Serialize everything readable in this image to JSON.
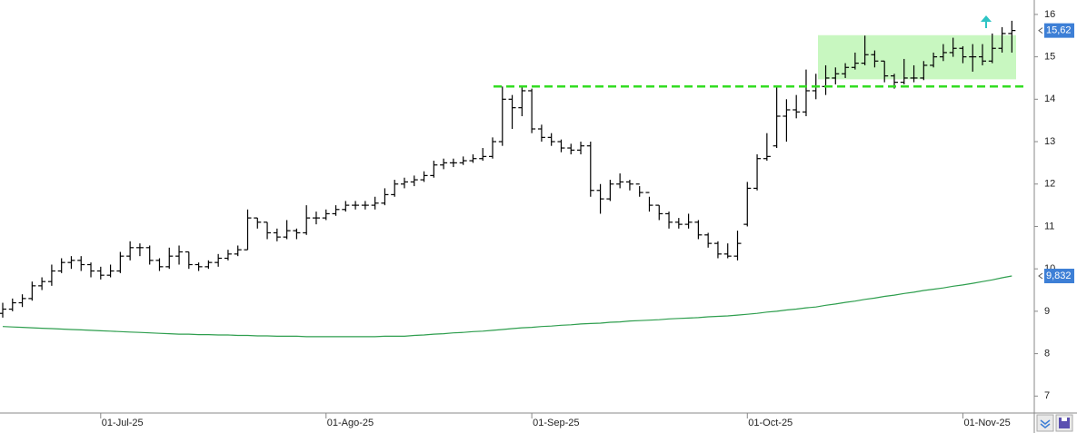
{
  "chart_data": {
    "type": "ohlc",
    "categories": [
      null,
      null,
      null,
      null,
      null,
      null,
      null,
      null,
      null,
      null,
      "01-Jul-25",
      null,
      null,
      null,
      null,
      null,
      null,
      null,
      null,
      null,
      null,
      null,
      null,
      null,
      null,
      null,
      null,
      null,
      null,
      null,
      null,
      null,
      null,
      "01-Ago-25",
      null,
      null,
      null,
      null,
      null,
      null,
      null,
      null,
      null,
      null,
      null,
      null,
      null,
      null,
      null,
      null,
      null,
      null,
      null,
      null,
      "01-Sep-25",
      null,
      null,
      null,
      null,
      null,
      null,
      null,
      null,
      null,
      null,
      null,
      null,
      null,
      null,
      null,
      null,
      null,
      null,
      null,
      null,
      null,
      "01-Oct-25",
      null,
      null,
      null,
      null,
      null,
      null,
      null,
      null,
      null,
      null,
      null,
      null,
      null,
      null,
      null,
      null,
      null,
      null,
      null,
      null,
      null,
      "01-Nov-25",
      null,
      null,
      null,
      null,
      null
    ],
    "ohlc": {
      "color": "#000000",
      "open": [
        8.95,
        9.05,
        9.2,
        9.3,
        9.6,
        9.7,
        9.95,
        10.15,
        10.2,
        10.1,
        9.95,
        9.85,
        9.95,
        10.3,
        10.5,
        10.5,
        10.2,
        10.05,
        10.3,
        10.4,
        10.1,
        10.05,
        10.15,
        10.25,
        10.35,
        10.45,
        11.2,
        11.1,
        10.85,
        10.75,
        10.9,
        10.85,
        11.2,
        11.2,
        11.3,
        11.4,
        11.5,
        11.5,
        11.5,
        11.55,
        11.75,
        12.0,
        12.05,
        12.1,
        12.2,
        12.45,
        12.5,
        12.5,
        12.55,
        12.6,
        12.65,
        13.0,
        14.0,
        13.8,
        14.2,
        13.3,
        13.1,
        13.0,
        12.85,
        12.8,
        12.9,
        11.85,
        11.65,
        12.0,
        12.05,
        12.0,
        11.8,
        11.5,
        11.3,
        11.1,
        11.05,
        11.1,
        10.8,
        10.6,
        10.35,
        10.3,
        11.05,
        11.9,
        12.6,
        12.9,
        13.6,
        13.75,
        13.7,
        14.2,
        14.3,
        14.5,
        14.6,
        14.75,
        14.85,
        15.05,
        14.9,
        14.55,
        14.4,
        14.5,
        14.5,
        14.8,
        15.0,
        15.1,
        15.2,
        15.0,
        15.0,
        14.9,
        15.2,
        15.55
      ],
      "high": [
        9.2,
        9.3,
        9.4,
        9.7,
        9.8,
        10.1,
        10.25,
        10.3,
        10.3,
        10.15,
        10.05,
        10.1,
        10.4,
        10.65,
        10.6,
        10.55,
        10.25,
        10.5,
        10.55,
        10.4,
        10.15,
        10.2,
        10.35,
        10.45,
        10.55,
        11.4,
        11.2,
        11.1,
        10.95,
        11.15,
        10.95,
        11.5,
        11.35,
        11.4,
        11.5,
        11.6,
        11.6,
        11.6,
        11.7,
        11.9,
        12.1,
        12.15,
        12.2,
        12.3,
        12.55,
        12.6,
        12.6,
        12.65,
        12.7,
        12.85,
        13.1,
        14.3,
        14.1,
        14.3,
        14.25,
        13.4,
        13.2,
        13.05,
        12.95,
        13.0,
        13.0,
        12.0,
        12.1,
        12.25,
        12.1,
        11.95,
        11.7,
        11.5,
        11.35,
        11.2,
        11.3,
        11.15,
        10.85,
        10.65,
        10.6,
        10.9,
        12.05,
        12.7,
        13.2,
        14.3,
        14.0,
        14.1,
        14.7,
        14.6,
        14.8,
        14.75,
        14.85,
        15.1,
        15.5,
        15.15,
        14.9,
        14.6,
        14.95,
        14.8,
        14.9,
        15.1,
        15.3,
        15.45,
        15.25,
        15.3,
        15.3,
        15.55,
        15.7,
        15.85
      ],
      "low": [
        8.85,
        9.0,
        9.1,
        9.25,
        9.5,
        9.6,
        9.9,
        10.0,
        9.95,
        9.8,
        9.75,
        9.8,
        9.9,
        10.2,
        10.3,
        10.1,
        9.95,
        10.0,
        10.1,
        10.0,
        9.95,
        10.0,
        10.05,
        10.2,
        10.3,
        10.45,
        10.95,
        10.7,
        10.65,
        10.7,
        10.7,
        10.8,
        11.05,
        11.15,
        11.25,
        11.35,
        11.4,
        11.4,
        11.4,
        11.5,
        11.7,
        11.9,
        11.95,
        12.05,
        12.15,
        12.35,
        12.4,
        12.45,
        12.5,
        12.55,
        12.6,
        12.9,
        13.3,
        13.6,
        13.2,
        13.0,
        12.9,
        12.75,
        12.7,
        12.7,
        11.7,
        11.3,
        11.6,
        11.9,
        11.85,
        11.7,
        11.35,
        11.15,
        10.95,
        10.95,
        10.95,
        10.7,
        10.5,
        10.25,
        10.25,
        10.2,
        11.0,
        11.85,
        12.55,
        12.85,
        13.0,
        13.55,
        13.6,
        14.0,
        14.1,
        14.35,
        14.5,
        14.7,
        14.8,
        14.75,
        14.4,
        14.25,
        14.35,
        14.4,
        14.45,
        14.75,
        14.9,
        15.0,
        14.85,
        14.65,
        14.8,
        14.85,
        15.1,
        15.1
      ],
      "close": [
        9.05,
        9.2,
        9.3,
        9.6,
        9.7,
        9.95,
        10.15,
        10.2,
        10.1,
        9.95,
        9.85,
        9.95,
        10.3,
        10.5,
        10.5,
        10.2,
        10.05,
        10.3,
        10.4,
        10.1,
        10.05,
        10.15,
        10.25,
        10.35,
        10.45,
        11.2,
        11.1,
        10.85,
        10.75,
        10.9,
        10.85,
        11.2,
        11.2,
        11.3,
        11.4,
        11.5,
        11.5,
        11.5,
        11.55,
        11.75,
        12.0,
        12.05,
        12.1,
        12.2,
        12.45,
        12.5,
        12.5,
        12.55,
        12.6,
        12.65,
        13.0,
        14.0,
        13.8,
        14.2,
        13.3,
        13.1,
        13.0,
        12.85,
        12.8,
        12.9,
        11.85,
        11.65,
        12.0,
        12.05,
        12.0,
        11.8,
        11.5,
        11.3,
        11.1,
        11.05,
        11.1,
        10.8,
        10.6,
        10.35,
        10.3,
        10.6,
        11.9,
        12.6,
        12.65,
        13.6,
        13.75,
        13.7,
        14.2,
        14.3,
        14.5,
        14.6,
        14.75,
        14.85,
        15.05,
        14.9,
        14.55,
        14.4,
        14.5,
        14.5,
        14.8,
        15.0,
        15.1,
        15.2,
        15.0,
        15.0,
        14.9,
        15.2,
        15.55,
        15.62
      ],
      "last_label": "15,62",
      "label_color": "#3d7fd6"
    },
    "moving_average": {
      "color": "#2e9e4e",
      "values": [
        8.64,
        8.63,
        8.62,
        8.61,
        8.6,
        8.59,
        8.58,
        8.57,
        8.56,
        8.55,
        8.54,
        8.53,
        8.52,
        8.51,
        8.5,
        8.49,
        8.48,
        8.47,
        8.46,
        8.46,
        8.45,
        8.45,
        8.44,
        8.44,
        8.43,
        8.43,
        8.42,
        8.42,
        8.41,
        8.41,
        8.41,
        8.4,
        8.4,
        8.4,
        8.4,
        8.4,
        8.4,
        8.4,
        8.4,
        8.41,
        8.41,
        8.41,
        8.43,
        8.44,
        8.46,
        8.47,
        8.49,
        8.5,
        8.52,
        8.53,
        8.55,
        8.57,
        8.59,
        8.61,
        8.62,
        8.64,
        8.65,
        8.67,
        8.68,
        8.7,
        8.71,
        8.72,
        8.74,
        8.75,
        8.77,
        8.78,
        8.79,
        8.8,
        8.82,
        8.83,
        8.84,
        8.85,
        8.87,
        8.88,
        8.89,
        8.91,
        8.93,
        8.95,
        8.98,
        9.0,
        9.03,
        9.05,
        9.08,
        9.1,
        9.14,
        9.17,
        9.21,
        9.24,
        9.28,
        9.31,
        9.35,
        9.38,
        9.42,
        9.45,
        9.49,
        9.52,
        9.55,
        9.59,
        9.62,
        9.66,
        9.7,
        9.74,
        9.79,
        9.832
      ],
      "last_label": "9,832",
      "label_color": "#3d7fd6"
    },
    "resistance": {
      "value": 14.3,
      "color": "#33dd22"
    },
    "zone": {
      "low": 14.47,
      "high": 15.51,
      "color": "#c8f7c0"
    },
    "ylim": [
      6.6,
      16.34
    ],
    "yticks": [
      7,
      8,
      9,
      10,
      11,
      12,
      13,
      14,
      15,
      16
    ]
  }
}
